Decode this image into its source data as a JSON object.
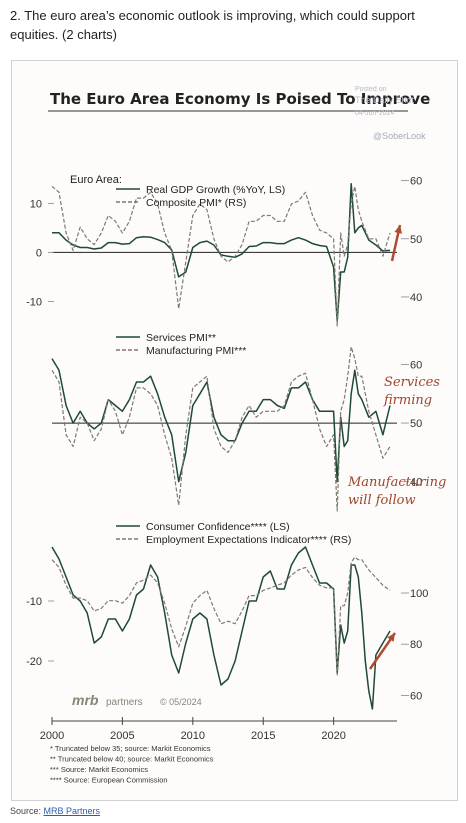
{
  "intro": {
    "text": "2. The euro area’s economic outlook is improving, which could support equities. (2 charts)"
  },
  "figure_title": "The Euro Area Economy Is Poised To Improve",
  "watermark": {
    "posted_on": "Posted on",
    "publisher": "The Daily Shot",
    "date": "04-Jun-2024",
    "handle": "@SoberLook"
  },
  "logo": {
    "brand": "mrb",
    "brand_rest": " partners",
    "copyright": "© 05/2024"
  },
  "x_ticks": [
    "2000",
    "2005",
    "2010",
    "2015",
    "2020"
  ],
  "footnotes": [
    "*  Truncated below 35; source: Markit Economics",
    "**  Truncated below 40; source: Markit Economics",
    "***  Source: Markit Economics",
    "****  Source: European Commission"
  ],
  "source": {
    "label": "Source: ",
    "link": "MRB Partners"
  },
  "colors": {
    "solid": "#1f4a35",
    "dashed": "#7d7a70",
    "arrow": "#b24a32",
    "annotation": "#a0452e"
  },
  "chart_data": [
    {
      "type": "line",
      "panel_label": "Euro Area:",
      "left_axis": {
        "ticks": [
          "10",
          "0",
          "-10"
        ],
        "range": [
          -15,
          17
        ]
      },
      "right_axis": {
        "ticks": [
          "60",
          "50",
          "40"
        ],
        "range": [
          35,
          62
        ]
      },
      "reference_line": 0,
      "series": [
        {
          "name": "Real GDP Growth (%YoY, LS)",
          "axis": "left",
          "style": "solid",
          "x": [
            2000,
            2000.5,
            2001,
            2001.5,
            2002,
            2002.5,
            2003,
            2003.5,
            2004,
            2004.5,
            2005,
            2005.5,
            2006,
            2006.5,
            2007,
            2007.5,
            2008,
            2008.5,
            2009,
            2009.5,
            2010,
            2010.5,
            2011,
            2011.5,
            2012,
            2012.5,
            2013,
            2013.5,
            2014,
            2014.5,
            2015,
            2015.5,
            2016,
            2016.5,
            2017,
            2017.5,
            2018,
            2018.5,
            2019,
            2019.5,
            2020,
            2020.25,
            2020.5,
            2020.75,
            2021,
            2021.25,
            2021.5,
            2021.75,
            2022,
            2022.5,
            2023,
            2023.5,
            2024
          ],
          "values": [
            4,
            4,
            2.5,
            1.5,
            1,
            1,
            0.7,
            0.9,
            2,
            2,
            1.7,
            1.8,
            3,
            3.2,
            3.1,
            2.6,
            2,
            0.5,
            -5,
            -4,
            1,
            2,
            2.3,
            1.5,
            -0.5,
            -0.8,
            -1,
            -0.3,
            1.2,
            1.3,
            2,
            2,
            1.8,
            1.8,
            2.5,
            3,
            2.5,
            1.8,
            1.4,
            1.2,
            -3,
            -14,
            -4,
            -4,
            -1,
            14,
            4,
            5,
            5.5,
            2.5,
            1.5,
            0.3,
            0.4
          ]
        },
        {
          "name": "Composite PMI* (RS)",
          "axis": "right",
          "style": "dashed",
          "x": [
            2000,
            2000.5,
            2001,
            2001.5,
            2002,
            2002.5,
            2003,
            2003.5,
            2004,
            2004.5,
            2005,
            2005.5,
            2006,
            2006.5,
            2007,
            2007.5,
            2008,
            2008.5,
            2009,
            2009.5,
            2010,
            2010.5,
            2011,
            2011.5,
            2012,
            2012.5,
            2013,
            2013.5,
            2014,
            2014.5,
            2015,
            2015.5,
            2016,
            2016.5,
            2017,
            2017.5,
            2018,
            2018.5,
            2019,
            2019.5,
            2020,
            2020.25,
            2020.5,
            2020.75,
            2021,
            2021.25,
            2021.5,
            2021.75,
            2022,
            2022.5,
            2023,
            2023.5,
            2024
          ],
          "values": [
            59,
            58,
            51,
            48,
            52,
            50,
            49,
            51,
            54,
            53,
            51,
            53,
            57,
            57,
            58,
            56,
            51,
            48,
            38,
            46,
            54,
            56,
            55,
            50,
            47,
            46,
            47,
            49,
            53,
            53,
            54,
            54,
            53,
            53,
            56,
            56.5,
            58,
            54,
            51.5,
            51,
            50,
            35,
            51,
            47,
            49,
            56,
            59,
            55,
            53,
            50,
            50,
            47,
            51
          ]
        }
      ]
    },
    {
      "type": "line",
      "right_axis": {
        "ticks": [
          "60",
          "50",
          "40"
        ],
        "range": [
          35,
          64
        ]
      },
      "reference_line": 50,
      "annotations": [
        "Services firming",
        "Manufacturing will follow"
      ],
      "series": [
        {
          "name": "Services PMI**",
          "axis": "right",
          "style": "solid",
          "x": [
            2000,
            2000.5,
            2001,
            2001.5,
            2002,
            2002.5,
            2003,
            2003.5,
            2004,
            2004.5,
            2005,
            2005.5,
            2006,
            2006.5,
            2007,
            2007.5,
            2008,
            2008.5,
            2009,
            2009.5,
            2010,
            2010.5,
            2011,
            2011.5,
            2012,
            2012.5,
            2013,
            2013.5,
            2014,
            2014.5,
            2015,
            2015.5,
            2016,
            2016.5,
            2017,
            2017.5,
            2018,
            2018.5,
            2019,
            2019.5,
            2020,
            2020.25,
            2020.5,
            2020.75,
            2021,
            2021.25,
            2021.5,
            2021.75,
            2022,
            2022.5,
            2023,
            2023.5,
            2024
          ],
          "values": [
            61,
            59,
            53,
            50,
            52,
            50,
            49,
            50,
            54,
            53,
            52,
            54,
            57,
            57,
            58,
            55,
            51,
            48,
            40,
            45,
            53,
            55,
            57,
            51,
            48,
            47,
            47,
            50,
            52,
            52,
            54,
            54,
            53,
            52.5,
            56,
            56,
            57,
            54,
            52,
            52,
            52,
            40,
            51,
            46,
            47,
            55,
            59,
            55,
            54,
            51,
            52,
            48,
            53
          ]
        },
        {
          "name": "Manufacturing PMI***",
          "axis": "right",
          "style": "dashed",
          "x": [
            2000,
            2000.5,
            2001,
            2001.5,
            2002,
            2002.5,
            2003,
            2003.5,
            2004,
            2004.5,
            2005,
            2005.5,
            2006,
            2006.5,
            2007,
            2007.5,
            2008,
            2008.5,
            2009,
            2009.5,
            2010,
            2010.5,
            2011,
            2011.5,
            2012,
            2012.5,
            2013,
            2013.5,
            2014,
            2014.5,
            2015,
            2015.5,
            2016,
            2016.5,
            2017,
            2017.5,
            2018,
            2018.5,
            2019,
            2019.5,
            2020,
            2020.25,
            2020.5,
            2020.75,
            2021,
            2021.25,
            2021.5,
            2021.75,
            2022,
            2022.5,
            2023,
            2023.5,
            2024
          ],
          "values": [
            59,
            57,
            48,
            46,
            51,
            50,
            47,
            49,
            54,
            52,
            48,
            51,
            56,
            56,
            55,
            53,
            48,
            44,
            36,
            48,
            56,
            57,
            58,
            49,
            46,
            45,
            47,
            51,
            53,
            51,
            52,
            52,
            52,
            53,
            57,
            58,
            58.5,
            54,
            49,
            46,
            48,
            35,
            52,
            54,
            58,
            63,
            61,
            58,
            58,
            52,
            48,
            44,
            46
          ]
        }
      ]
    },
    {
      "type": "line",
      "left_axis": {
        "ticks": [
          "-10",
          "-20"
        ],
        "range": [
          -30,
          2
        ]
      },
      "right_axis": {
        "ticks": [
          "100",
          "80",
          "60"
        ],
        "range": [
          50,
          125
        ]
      },
      "series": [
        {
          "name": "Consumer Confidence**** (LS)",
          "axis": "left",
          "style": "solid",
          "x": [
            2000,
            2000.5,
            2001,
            2001.5,
            2002,
            2002.5,
            2003,
            2003.5,
            2004,
            2004.5,
            2005,
            2005.5,
            2006,
            2006.5,
            2007,
            2007.5,
            2008,
            2008.5,
            2009,
            2009.5,
            2010,
            2010.5,
            2011,
            2011.5,
            2012,
            2012.5,
            2013,
            2013.5,
            2014,
            2014.5,
            2015,
            2015.5,
            2016,
            2016.5,
            2017,
            2017.5,
            2018,
            2018.5,
            2019,
            2019.5,
            2020,
            2020.25,
            2020.5,
            2020.75,
            2021,
            2021.25,
            2021.5,
            2021.75,
            2022,
            2022.25,
            2022.5,
            2022.75,
            2023,
            2023.5,
            2024
          ],
          "values": [
            -1,
            -3,
            -6,
            -9,
            -10,
            -12,
            -17,
            -16,
            -13,
            -13,
            -15,
            -13,
            -9,
            -8,
            -4,
            -6,
            -12,
            -19,
            -22,
            -17,
            -13,
            -12,
            -13,
            -19,
            -24,
            -23,
            -20,
            -15,
            -10,
            -10,
            -6,
            -5,
            -8,
            -8,
            -4,
            -2,
            -1,
            -4,
            -7,
            -7,
            -8,
            -22,
            -14,
            -17,
            -15,
            -4,
            -4,
            -6,
            -12,
            -20,
            -25,
            -28,
            -19,
            -17,
            -15
          ]
        },
        {
          "name": "Employment Expectations Indicator**** (RS)",
          "axis": "right",
          "style": "dashed",
          "x": [
            2000,
            2000.5,
            2001,
            2001.5,
            2002,
            2002.5,
            2003,
            2003.5,
            2004,
            2004.5,
            2005,
            2005.5,
            2006,
            2006.5,
            2007,
            2007.5,
            2008,
            2008.5,
            2009,
            2009.5,
            2010,
            2010.5,
            2011,
            2011.5,
            2012,
            2012.5,
            2013,
            2013.5,
            2014,
            2014.5,
            2015,
            2015.5,
            2016,
            2016.5,
            2017,
            2017.5,
            2018,
            2018.5,
            2019,
            2019.5,
            2020,
            2020.25,
            2020.5,
            2020.75,
            2021,
            2021.25,
            2021.5,
            2021.75,
            2022,
            2022.5,
            2023,
            2023.5,
            2024
          ],
          "values": [
            113,
            110,
            103,
            98,
            98,
            97,
            93,
            94,
            97,
            97,
            96,
            99,
            104,
            105,
            107,
            104,
            96,
            86,
            79,
            87,
            96,
            99,
            101,
            94,
            88,
            89,
            88,
            93,
            99,
            99,
            101,
            102,
            103,
            104,
            107,
            109,
            110,
            106,
            103,
            102,
            102,
            68,
            95,
            95,
            100,
            112,
            114,
            113,
            113,
            109,
            106,
            103,
            101
          ]
        }
      ]
    }
  ]
}
